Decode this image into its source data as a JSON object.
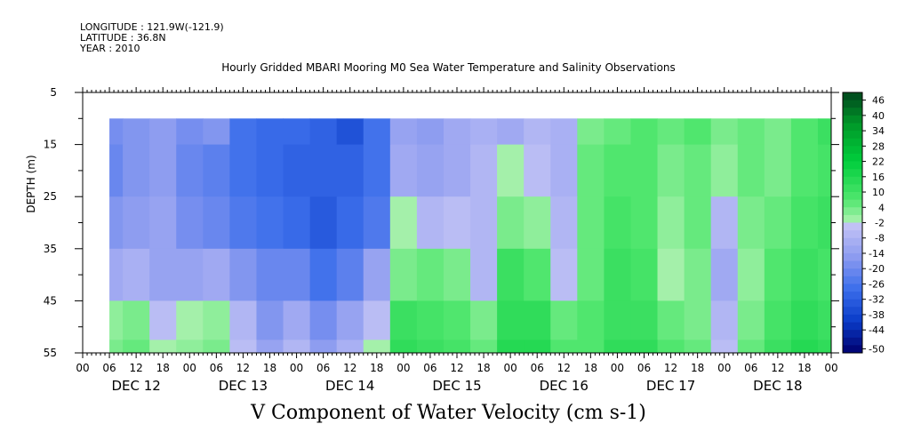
{
  "header": {
    "longitude": "LONGITUDE : 121.9W(-121.9)",
    "latitude": "LATITUDE : 36.8N",
    "year": "YEAR : 2010"
  },
  "chart_data": {
    "type": "heatmap",
    "title": "Hourly Gridded MBARI Mooring M0 Sea Water Temperature and Salinity Observations",
    "variable_title": "V Component of Water Velocity (cm s-1)",
    "ylabel": "DEPTH (m)",
    "xlabel": "",
    "y_axis": {
      "range": [
        5,
        55
      ],
      "inverted": true,
      "ticks": [
        5,
        15,
        25,
        35,
        45,
        55
      ],
      "data_range": [
        10,
        55
      ]
    },
    "x_axis": {
      "units": "hours since DEC 12 00 2010",
      "range": [
        0,
        168
      ],
      "data_start": 6,
      "hour_ticks": [
        "00",
        "06",
        "12",
        "18",
        "00",
        "06",
        "12",
        "18",
        "00",
        "06",
        "12",
        "18",
        "00",
        "06",
        "12",
        "18",
        "00",
        "06",
        "12",
        "18",
        "00",
        "06",
        "12",
        "18",
        "00",
        "06",
        "12",
        "18",
        "00"
      ],
      "days": [
        "DEC 12",
        "DEC 13",
        "DEC 14",
        "DEC 15",
        "DEC 16",
        "DEC 17",
        "DEC 18"
      ]
    },
    "colorbar": {
      "labels": [
        "46",
        "40",
        "34",
        "28",
        "22",
        "16",
        "10",
        "4",
        "-2",
        "-8",
        "-14",
        "-20",
        "-26",
        "-32",
        "-38",
        "-44",
        "-50"
      ],
      "min": -50,
      "max": 52
    },
    "field_estimate": {
      "depths": [
        10,
        20,
        30,
        40,
        50,
        55
      ],
      "times": [
        6,
        12,
        18,
        24,
        30,
        36,
        42,
        48,
        54,
        60,
        66,
        72,
        78,
        84,
        90,
        96,
        102,
        108,
        114,
        120,
        126,
        132,
        138,
        144,
        150,
        156,
        162,
        168
      ],
      "values": [
        [
          -16,
          -14,
          -12,
          -16,
          -14,
          -24,
          -26,
          -26,
          -28,
          -32,
          -24,
          -10,
          -12,
          -8,
          -6,
          -8,
          -4,
          -6,
          6,
          8,
          10,
          8,
          10,
          6,
          8,
          6,
          10,
          14
        ],
        [
          -18,
          -14,
          -12,
          -18,
          -20,
          -24,
          -26,
          -28,
          -28,
          -28,
          -24,
          -8,
          -10,
          -8,
          -4,
          2,
          -2,
          -6,
          8,
          10,
          10,
          6,
          8,
          4,
          8,
          6,
          10,
          12
        ],
        [
          -14,
          -12,
          -10,
          -16,
          -18,
          -22,
          -24,
          -26,
          -30,
          -26,
          -22,
          2,
          -4,
          -2,
          -4,
          6,
          4,
          -4,
          8,
          12,
          10,
          4,
          8,
          -4,
          6,
          8,
          12,
          14
        ],
        [
          -8,
          -6,
          -10,
          -10,
          -8,
          -14,
          -18,
          -18,
          -24,
          -20,
          -10,
          6,
          8,
          6,
          -4,
          14,
          10,
          -2,
          8,
          14,
          12,
          2,
          6,
          -8,
          4,
          10,
          14,
          12
        ],
        [
          4,
          6,
          -2,
          2,
          4,
          -4,
          -14,
          -8,
          -16,
          -10,
          -2,
          14,
          12,
          10,
          6,
          16,
          16,
          8,
          10,
          14,
          14,
          8,
          6,
          -4,
          6,
          12,
          16,
          14
        ],
        [
          6,
          8,
          2,
          4,
          6,
          -2,
          -10,
          -4,
          -12,
          -6,
          2,
          16,
          14,
          12,
          8,
          18,
          18,
          10,
          10,
          16,
          16,
          10,
          8,
          -2,
          8,
          14,
          18,
          16
        ]
      ]
    }
  }
}
